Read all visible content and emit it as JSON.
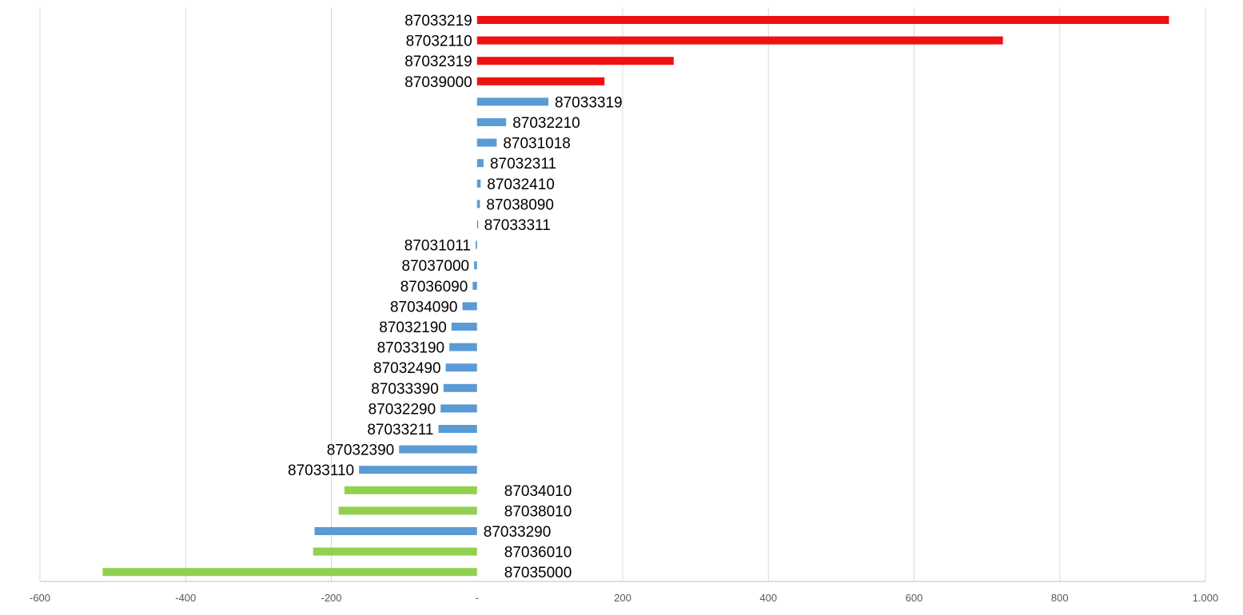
{
  "chart_data": {
    "type": "bar",
    "orientation": "horizontal",
    "title": "",
    "xlabel": "",
    "ylabel": "",
    "xlim": [
      -600,
      1000
    ],
    "x_ticks": [
      -600,
      -400,
      -200,
      0,
      200,
      400,
      600,
      800,
      1000
    ],
    "x_tick_labels": [
      "-600",
      "-400",
      "-200",
      "-",
      "200",
      "400",
      "600",
      "800",
      "1.000"
    ],
    "grid": "vertical",
    "legend": "none",
    "colors": {
      "red": "#ee1111",
      "blue": "#5b9bd5",
      "green": "#92d050"
    },
    "categories": [
      "87033219",
      "87032110",
      "87032319",
      "87039000",
      "87033319",
      "87032210",
      "87031018",
      "87032311",
      "87032410",
      "87038090",
      "87033311",
      "87031011",
      "87037000",
      "87036090",
      "87034090",
      "87032190",
      "87033190",
      "87032490",
      "87033390",
      "87032290",
      "87033211",
      "87032390",
      "87033110",
      "87034010",
      "87038010",
      "87033290",
      "87036010",
      "87035000"
    ],
    "values": [
      950,
      722,
      270,
      175,
      98,
      40,
      27,
      9,
      5,
      4,
      1,
      -2,
      -4,
      -6,
      -20,
      -35,
      -38,
      -43,
      -46,
      -50,
      -53,
      -107,
      -162,
      -182,
      -190,
      -223,
      -225,
      -514
    ],
    "bar_colors": [
      "red",
      "red",
      "red",
      "red",
      "blue",
      "blue",
      "blue",
      "blue",
      "blue",
      "blue",
      "blue",
      "blue",
      "blue",
      "blue",
      "blue",
      "blue",
      "blue",
      "blue",
      "blue",
      "blue",
      "blue",
      "blue",
      "blue",
      "green",
      "green",
      "blue",
      "green",
      "green"
    ],
    "label_sides": [
      "left",
      "left",
      "left",
      "left",
      "right",
      "right",
      "right",
      "right",
      "right",
      "right",
      "right",
      "left",
      "left",
      "left",
      "left",
      "left",
      "left",
      "left",
      "left",
      "left",
      "left",
      "left",
      "left",
      "right",
      "right",
      "right",
      "right",
      "right"
    ]
  }
}
